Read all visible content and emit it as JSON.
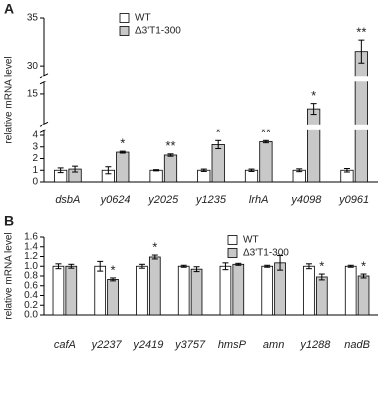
{
  "chart_data": [
    {
      "type": "bar",
      "panel_label": "A",
      "ylabel": "relative mRNA level",
      "categories": [
        "dsbA",
        "y0624",
        "y2025",
        "y1235",
        "lrhA",
        "y4098",
        "y0961"
      ],
      "series": [
        {
          "name": "WT",
          "color": "#ffffff",
          "values": [
            1.0,
            1.0,
            1.0,
            1.0,
            1.0,
            1.0,
            1.0
          ],
          "errors": [
            0.2,
            0.3,
            0.05,
            0.1,
            0.1,
            0.12,
            0.15
          ]
        },
        {
          "name": "Δ3'T1-300",
          "color": "#c8c8c8",
          "values": [
            1.1,
            2.55,
            2.3,
            3.2,
            3.45,
            12.5,
            31.5
          ],
          "errors": [
            0.25,
            0.08,
            0.1,
            0.35,
            0.1,
            0.9,
            1.2
          ]
        }
      ],
      "significance": [
        null,
        "*",
        "**",
        "*",
        "**",
        "*",
        "**"
      ],
      "ylim_segments": [
        [
          0,
          4.4
        ],
        [
          10,
          17
        ],
        [
          29,
          35
        ]
      ],
      "yticks": [
        0,
        1,
        2,
        3,
        4,
        15,
        30,
        35
      ]
    },
    {
      "type": "bar",
      "panel_label": "B",
      "ylabel": "relative mRNA level",
      "categories": [
        "cafA",
        "y2237",
        "y2419",
        "y3757",
        "hmsP",
        "amn",
        "y1288",
        "nadB"
      ],
      "series": [
        {
          "name": "WT",
          "color": "#ffffff",
          "values": [
            1.0,
            1.0,
            1.0,
            1.0,
            1.0,
            1.0,
            1.0,
            1.0
          ],
          "errors": [
            0.05,
            0.1,
            0.04,
            0.02,
            0.07,
            0.02,
            0.05,
            0.02
          ]
        },
        {
          "name": "Δ3'T1-300",
          "color": "#c8c8c8",
          "values": [
            1.0,
            0.73,
            1.19,
            0.94,
            1.04,
            1.07,
            0.78,
            0.8
          ],
          "errors": [
            0.04,
            0.03,
            0.04,
            0.05,
            0.02,
            0.15,
            0.06,
            0.04
          ]
        }
      ],
      "significance": [
        null,
        "*",
        "*",
        null,
        null,
        null,
        "*",
        "*"
      ],
      "ylim": [
        0,
        1.6
      ],
      "yticks": [
        {
          "value": 0,
          "label": "0.0"
        },
        {
          "value": 0.2,
          "label": "0.2"
        },
        {
          "value": 0.4,
          "label": "0.4"
        },
        {
          "value": 0.6,
          "label": "0.6"
        },
        {
          "value": 0.8,
          "label": "0.8"
        },
        {
          "value": 1.0,
          "label": "1.0"
        },
        {
          "value": 1.2,
          "label": "1.2"
        },
        {
          "value": 1.4,
          "label": "1.4"
        },
        {
          "value": 1.6,
          "label": "1.6"
        }
      ]
    }
  ]
}
